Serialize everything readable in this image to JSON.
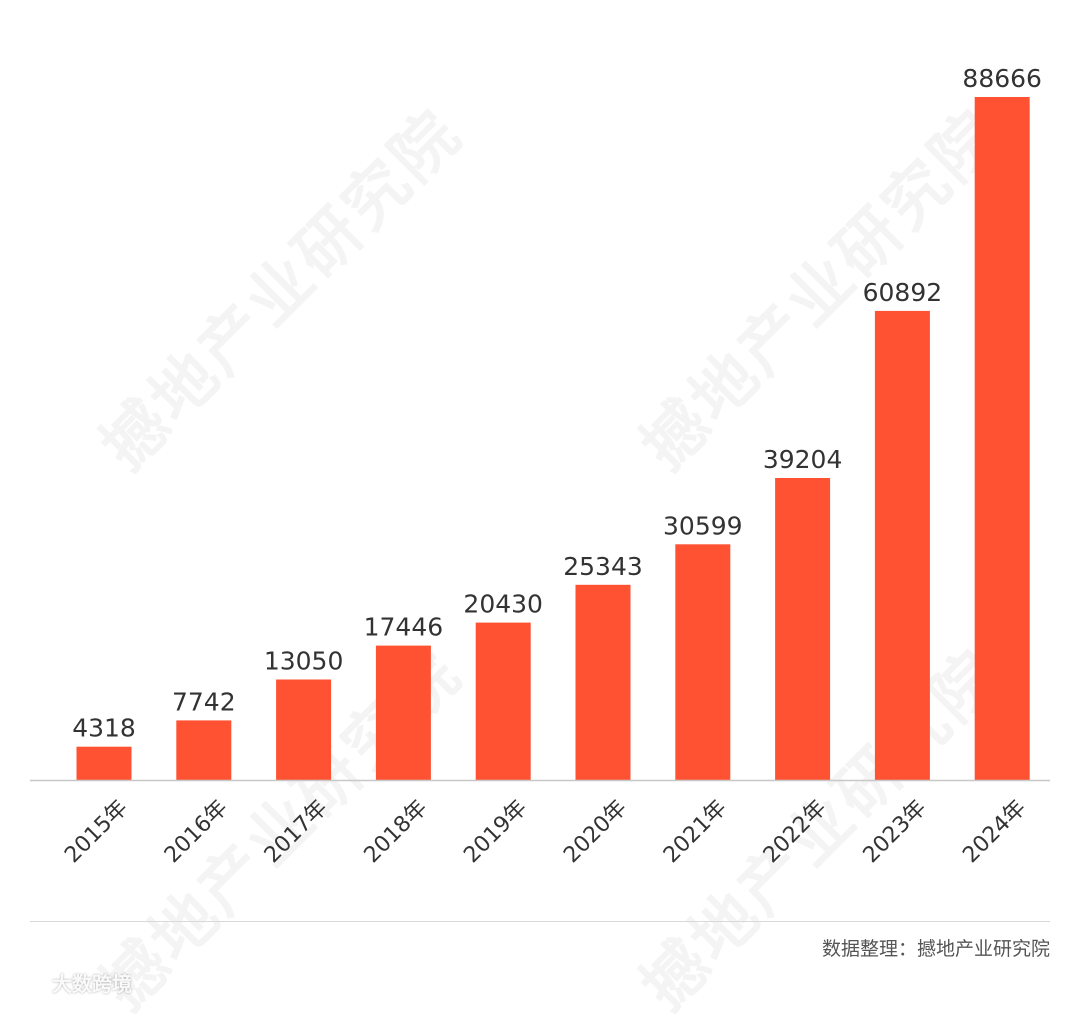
{
  "watermark": "撼地产业研究院",
  "source": "数据整理：撼地产业研究院",
  "brand": {
    "icon": "logo-glyph-icon",
    "label": "大数跨境"
  },
  "colors": {
    "bar": "#ff5233",
    "axis": "#c8c8c8",
    "label": "#333333",
    "tick": "#333333"
  },
  "chart_data": {
    "type": "bar",
    "categories": [
      "2015年",
      "2016年",
      "2017年",
      "2018年",
      "2019年",
      "2020年",
      "2021年",
      "2022年",
      "2023年",
      "2024年"
    ],
    "values": [
      4318,
      7742,
      13050,
      17446,
      20430,
      25343,
      30599,
      39204,
      60892,
      88666
    ],
    "title": "",
    "xlabel": "",
    "ylabel": "",
    "ylim": [
      0,
      88666
    ],
    "grid": false,
    "legend": "none",
    "data_labels": true
  }
}
